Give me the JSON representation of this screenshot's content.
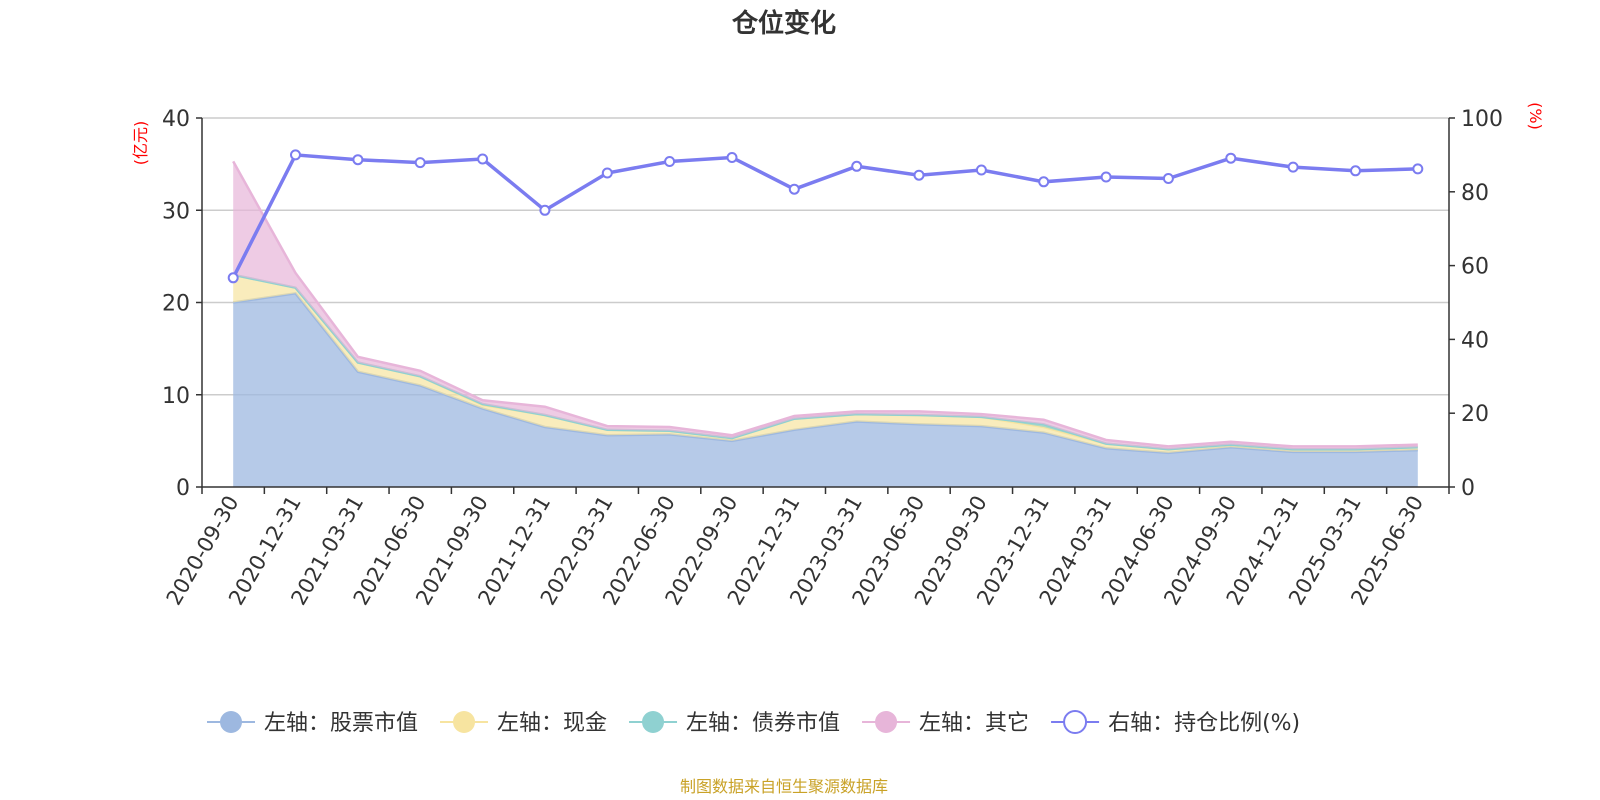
{
  "chart_data": {
    "type": "area",
    "title": "仓位变化",
    "source": "制图数据来自恒生聚源数据库",
    "left_axis": {
      "unit": "(亿元)",
      "ylim": [
        0,
        40
      ],
      "ticks": [
        0,
        10,
        20,
        30,
        40
      ]
    },
    "right_axis": {
      "unit": "(%)",
      "ylim": [
        0,
        100
      ],
      "ticks": [
        0,
        20,
        40,
        60,
        80,
        100
      ]
    },
    "grid": true,
    "legend_position": "bottom-center",
    "categories": [
      "2020-09-30",
      "2020-12-31",
      "2021-03-31",
      "2021-06-30",
      "2021-09-30",
      "2021-12-31",
      "2022-03-31",
      "2022-06-30",
      "2022-09-30",
      "2022-12-31",
      "2023-03-31",
      "2023-06-30",
      "2023-09-30",
      "2023-12-31",
      "2024-03-31",
      "2024-06-30",
      "2024-09-30",
      "2024-12-31",
      "2025-03-31",
      "2025-06-30"
    ],
    "series": [
      {
        "name": "左轴：股票市值",
        "axis": "left",
        "kind": "area",
        "color": "#9db8e0",
        "values": [
          20.0,
          21.0,
          12.5,
          11.0,
          8.5,
          6.5,
          5.6,
          5.7,
          5.0,
          6.2,
          7.1,
          6.8,
          6.6,
          5.9,
          4.2,
          3.7,
          4.3,
          3.8,
          3.8,
          4.0
        ]
      },
      {
        "name": "左轴：现金",
        "axis": "left",
        "kind": "area",
        "color": "#f7e4a0",
        "values": [
          3.0,
          0.6,
          1.0,
          1.0,
          0.4,
          1.3,
          0.6,
          0.4,
          0.3,
          1.2,
          0.8,
          1.0,
          1.0,
          0.6,
          0.5,
          0.4,
          0.3,
          0.3,
          0.3,
          0.3
        ]
      },
      {
        "name": "左轴：债券市值",
        "axis": "left",
        "kind": "area",
        "color": "#8fd1d1",
        "values": [
          0,
          0,
          0,
          0,
          0.1,
          0,
          0,
          0,
          0,
          0,
          0,
          0,
          0,
          0.3,
          0,
          0,
          0,
          0,
          0,
          0
        ]
      },
      {
        "name": "左轴：其它",
        "axis": "left",
        "kind": "area",
        "color": "#e7b5d9",
        "values": [
          12.3,
          1.6,
          0.6,
          0.6,
          0.4,
          0.9,
          0.4,
          0.4,
          0.3,
          0.3,
          0.3,
          0.4,
          0.3,
          0.5,
          0.4,
          0.3,
          0.3,
          0.3,
          0.3,
          0.3
        ]
      },
      {
        "name": "右轴：持仓比例(%)",
        "axis": "right",
        "kind": "line",
        "color": "#7b7cf0",
        "values": [
          56.7,
          90.0,
          88.7,
          87.9,
          88.9,
          75.0,
          85.1,
          88.2,
          89.3,
          80.7,
          86.9,
          84.5,
          85.9,
          82.7,
          84.0,
          83.6,
          89.1,
          86.7,
          85.7,
          86.2
        ]
      }
    ]
  }
}
